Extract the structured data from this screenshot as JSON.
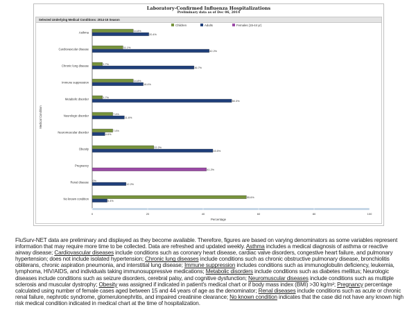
{
  "chart_data": {
    "type": "bar",
    "orientation": "horizontal",
    "title": "Laboratory-Confirmed Influenza Hospitalizations",
    "subtitle": "Preliminary data as of Dec 06, 2014",
    "panel_title": "Selected Underlying Medical Conditions: 2014-15 Season",
    "xlabel": "Percentage",
    "ylabel": "Medical Condition",
    "xlim": [
      0,
      100
    ],
    "xticks": [
      0,
      20,
      40,
      60,
      80,
      100
    ],
    "legend_position": "top",
    "categories": [
      "Asthma",
      "Cardiovascular disease",
      "Chronic lung disease",
      "Immune suppression",
      "Metabolic disorder",
      "Neurologic disorder",
      "Neuromuscular disorder",
      "Obesity",
      "Pregnancy",
      "Renal disease",
      "No known condition"
    ],
    "series": [
      {
        "name": "Children",
        "color": "#77933c",
        "values": [
          14.8,
          11.1,
          3.7,
          14.8,
          3.7,
          7.4,
          7.4,
          22.2,
          null,
          0,
          55.6
        ],
        "labels": [
          "14.8%",
          "11.1%",
          "3.7%",
          "14.8%",
          "3.7%",
          "7.4%",
          "7.4%",
          "22.2%",
          null,
          "0%",
          "55.6%"
        ]
      },
      {
        "name": "Adults",
        "color": "#1f3f7a",
        "values": [
          20.4,
          42.2,
          36.7,
          18.4,
          50.3,
          11.6,
          4.6,
          43.5,
          null,
          12.2,
          5.4
        ],
        "labels": [
          "20.4%",
          "42.2%",
          "36.7%",
          "18.4%",
          "50.3%",
          "11.6%",
          "4.6%",
          "43.5%",
          null,
          "12.2%",
          "5.4%"
        ]
      },
      {
        "name": "Females (15-44 yr)",
        "color": "#9b4aa6",
        "values": [
          null,
          null,
          null,
          null,
          null,
          null,
          null,
          null,
          41.2,
          null,
          null
        ],
        "labels": [
          null,
          null,
          null,
          null,
          null,
          null,
          null,
          null,
          "41.2%",
          null,
          null
        ]
      }
    ]
  },
  "footnote": [
    {
      "text": "FluSurv-NET data are preliminary and displayed as they become available.  Therefore, figures are based on varying  denominators as some variables represent information that may require more time to be collected.  Data are refreshed and updated weekly.  ",
      "u": false
    },
    {
      "text": "Asthma",
      "u": true
    },
    {
      "text": " includes a medical diagnosis of asthma or reactive airway disease; ",
      "u": false
    },
    {
      "text": "Cardiovascular diseases",
      "u": true
    },
    {
      "text": " include conditions such as coronary heart disease, cardiac valve disorders, congestive heart failure, and pulmonary hypertension; does not include isolated hypertension;  ",
      "u": false
    },
    {
      "text": "Chronic lung diseases",
      "u": true
    },
    {
      "text": " include conditions such as chronic obstructive pulmonary disease, bronchiolitis obliterans, chronic aspiration pneumonia, and interstitial lung disease; ",
      "u": false
    },
    {
      "text": "Immune suppression",
      "u": true
    },
    {
      "text": " includes conditions such as immunoglobulin deficiency, leukemia, lymphoma, HIV/AIDS,  and individuals taking immunosuppressive medications;  ",
      "u": false
    },
    {
      "text": "Metabolic disorders",
      "u": true
    },
    {
      "text": " include conditions such as diabetes mellitus;  Neurologic diseases include conditions such as seizure disorders, cerebral palsy, and cognitive dysfunction;  ",
      "u": false
    },
    {
      "text": "Neuromuscular diseases",
      "u": true
    },
    {
      "text": " include conditions such as multiple sclerosis and muscular dystrophy; ",
      "u": false
    },
    {
      "text": "Obesity",
      "u": true
    },
    {
      "text": " was assigned if indicated in patient's medical chart or if body mass index (BMI) >30 kg/m²; ",
      "u": false
    },
    {
      "text": "Pregnancy",
      "u": true
    },
    {
      "text": " percentage calculated using number of female cases aged between 15 and 44 years of age as the denominator; ",
      "u": false
    },
    {
      "text": "Renal diseases",
      "u": true
    },
    {
      "text": " include conditions such as acute or chronic renal failure, nephrotic syndrome, glomerulonephritis, and impaired creatinine clearance; ",
      "u": false
    },
    {
      "text": "No known condition",
      "u": true
    },
    {
      "text": " indicates that the case did not have any known high risk medical condition indicated in medical chart at the time of hospitalization.",
      "u": false
    }
  ]
}
